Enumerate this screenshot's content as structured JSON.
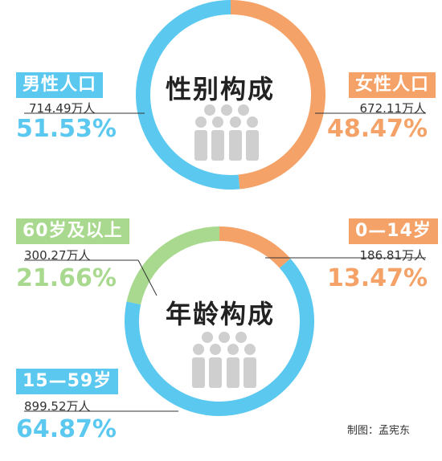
{
  "colors": {
    "male": "#5bc8f0",
    "female": "#f4a267",
    "age_0_14": "#f4a267",
    "age_15_59": "#5bc8f0",
    "age_60_plus": "#a8d98e",
    "people_icon": "#cfcfcf"
  },
  "chart_data": [
    {
      "type": "pie",
      "title": "性别构成",
      "unit": "万人",
      "slices": [
        {
          "label": "男性人口",
          "value": 714.49,
          "value_text": "714.49万人",
          "percent": 51.53,
          "percent_text": "51.53%",
          "color": "#5bc8f0"
        },
        {
          "label": "女性人口",
          "value": 672.11,
          "value_text": "672.11万人",
          "percent": 48.47,
          "percent_text": "48.47%",
          "color": "#f4a267"
        }
      ]
    },
    {
      "type": "pie",
      "title": "年龄构成",
      "unit": "万人",
      "slices": [
        {
          "label": "0—14岁",
          "value": 186.81,
          "value_text": "186.81万人",
          "percent": 13.47,
          "percent_text": "13.47%",
          "color": "#f4a267"
        },
        {
          "label": "15—59岁",
          "value": 899.52,
          "value_text": "899.52万人",
          "percent": 64.87,
          "percent_text": "64.87%",
          "color": "#5bc8f0"
        },
        {
          "label": "60岁及以上",
          "value": 300.27,
          "value_text": "300.27万人",
          "percent": 21.66,
          "percent_text": "21.66%",
          "color": "#a8d98e"
        }
      ]
    }
  ],
  "credit": "制图：孟宪东"
}
